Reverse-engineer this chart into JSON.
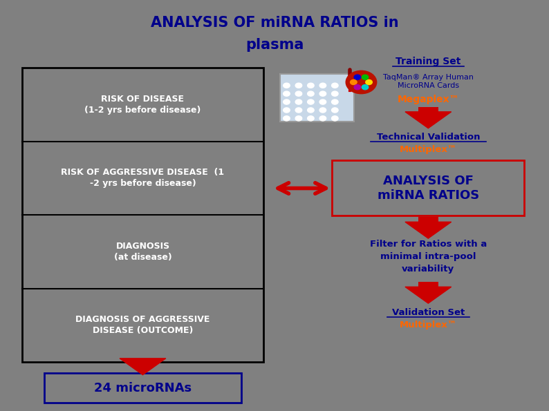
{
  "title_line1": "ANALYSIS OF miRNA RATIOS in",
  "title_line2": "plasma",
  "bg_color": "#808080",
  "title_color": "#00008B",
  "white_color": "#FFFFFF",
  "blue_color": "#00008B",
  "orange_color": "#FF6600",
  "red_color": "#CC0000",
  "black_color": "#000000",
  "left_cells": [
    "RISK OF DISEASE\n(1-2 yrs before disease)",
    "RISK OF AGGRESSIVE DISEASE  (1\n-2 yrs before disease)",
    "DIAGNOSIS\n(at disease)",
    "DIAGNOSIS OF AGGRESSIVE\nDISEASE (OUTCOME)"
  ],
  "training_set_label": "Training Set",
  "taqman_text": "TaqMan® Array Human\nMicroRNA Cards",
  "megaplex_text": "Megaplex™",
  "tech_validation_line1": "Technical Validation",
  "tech_validation_line2": "Multiplex™",
  "analysis_box_text": "ANALYSIS OF\nmiRNA RATIOS",
  "filter_text": "Filter for Ratios with a\nminimal intra-pool\nvariability",
  "validation_set_line1": "Validation Set",
  "validation_set_line2": "Multiplex™",
  "micrornas_text": "24 microRNAs"
}
